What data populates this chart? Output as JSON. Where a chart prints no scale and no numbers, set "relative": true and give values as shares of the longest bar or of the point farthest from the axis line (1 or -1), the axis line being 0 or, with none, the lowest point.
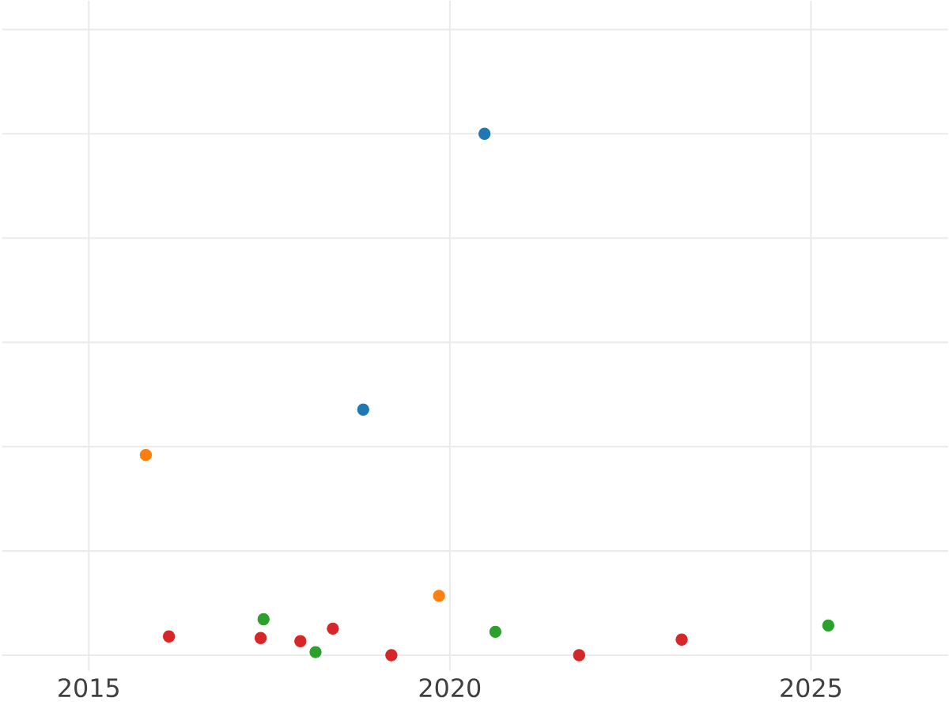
{
  "chart_data": {
    "type": "scatter",
    "relative": true,
    "grid": true,
    "xlim": [
      2013.8,
      2026.9
    ],
    "xticks": [
      2015,
      2020,
      2025
    ],
    "series": [
      {
        "color": "#1f77b4",
        "x": [
          2020.48,
          2018.8
        ],
        "values": [
          1.0,
          0.471
        ]
      },
      {
        "color": "#ff7f0e",
        "x": [
          2015.79,
          2019.85
        ],
        "values": [
          0.384,
          0.114
        ]
      },
      {
        "color": "#2ca02c",
        "x": [
          2017.42,
          2018.14,
          2020.63,
          2025.24
        ],
        "values": [
          0.069,
          0.006,
          0.045,
          0.057
        ]
      },
      {
        "color": "#d62728",
        "x": [
          2016.11,
          2017.38,
          2017.93,
          2018.38,
          2019.19,
          2021.79,
          2023.21
        ],
        "values": [
          0.036,
          0.033,
          0.027,
          0.051,
          0.0,
          0.0,
          0.03
        ]
      }
    ]
  }
}
